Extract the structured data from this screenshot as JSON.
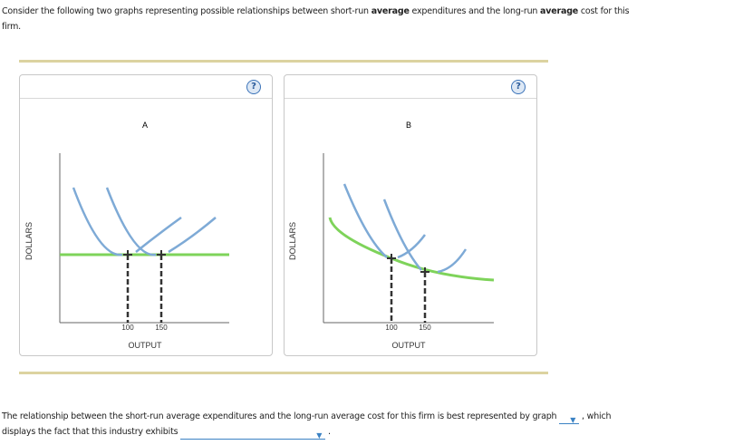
{
  "intro": {
    "p1": "Consider the following two graphs representing possible relationships between short-run ",
    "b1": "average",
    "p2": " expenditures and the long-run ",
    "b2": "average",
    "p3": " cost for this firm."
  },
  "graphs": [
    {
      "title": "A",
      "ylabel": "DOLLARS",
      "xlabel": "OUTPUT",
      "ticks": [
        "100",
        "150"
      ],
      "help": "?"
    },
    {
      "title": "B",
      "ylabel": "DOLLARS",
      "xlabel": "OUTPUT",
      "ticks": [
        "100",
        "150"
      ],
      "help": "?"
    }
  ],
  "colors": {
    "srac": "#7eaad6",
    "lrac": "#7ed35a",
    "rule": "#dcd3a0",
    "dropdown": "#3b82c4"
  },
  "question": {
    "p1": "The relationship between the short-run average expenditures and the long-run average cost for this firm is best represented by graph ",
    "p2": " , which displays the fact that this industry exhibits ",
    "p3": " .",
    "dropdown1": "",
    "dropdown2": ""
  }
}
